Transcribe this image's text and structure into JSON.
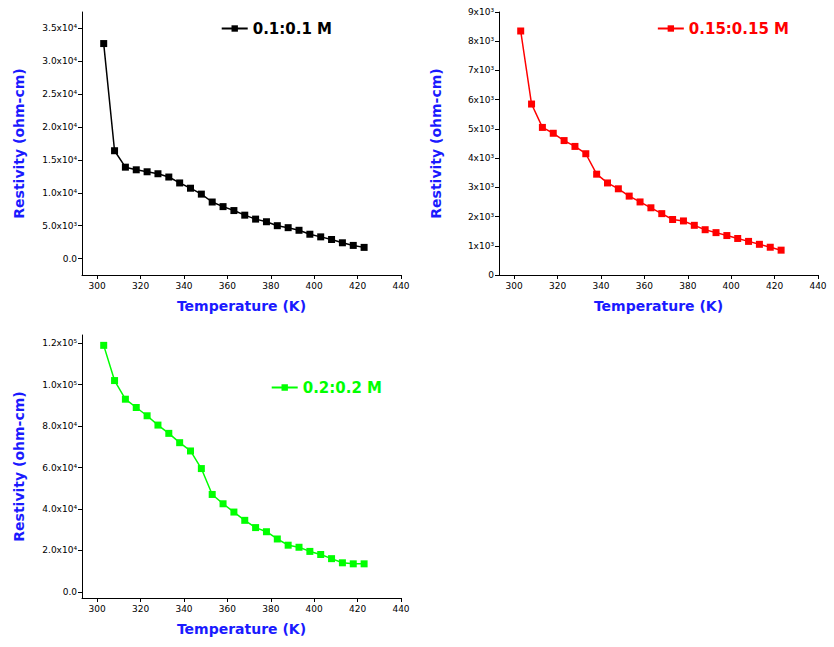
{
  "chart_data": [
    {
      "type": "line",
      "marker": "square",
      "grid": false,
      "legend": "top-right",
      "x_label": "Temperature (K)",
      "y_label": "Restivity (ohm-cm)",
      "x": [
        303,
        308,
        313,
        318,
        323,
        328,
        333,
        338,
        343,
        348,
        353,
        358,
        363,
        368,
        373,
        378,
        383,
        388,
        393,
        398,
        403,
        408,
        413,
        418,
        423
      ],
      "series": [
        {
          "name": "0.1:0.1 M",
          "color": "#000000",
          "values": [
            32700,
            16400,
            13900,
            13500,
            13200,
            12900,
            12400,
            11500,
            10700,
            9800,
            8600,
            7900,
            7300,
            6600,
            6000,
            5600,
            5000,
            4700,
            4300,
            3700,
            3300,
            2900,
            2400,
            2000,
            1700
          ]
        }
      ],
      "xlim": [
        293,
        440
      ],
      "xticks": [
        300,
        320,
        340,
        360,
        380,
        400,
        420,
        440
      ],
      "ylim": [
        -2500,
        37500
      ],
      "yticks": [
        {
          "value": 0,
          "label": "0.0"
        },
        {
          "value": 5000,
          "label": "5.0x10³"
        },
        {
          "value": 10000,
          "label": "1.0x10⁴"
        },
        {
          "value": 15000,
          "label": "1.5x10⁴"
        },
        {
          "value": 20000,
          "label": "2.0x10⁴"
        },
        {
          "value": 25000,
          "label": "2.5x10⁴"
        },
        {
          "value": 30000,
          "label": "3.0x10⁴"
        },
        {
          "value": 35000,
          "label": "3.5x10⁴"
        }
      ]
    },
    {
      "type": "line",
      "marker": "square",
      "grid": false,
      "legend": "top-right",
      "x_label": "Temperature (K)",
      "y_label": "Restivity (ohm-cm)",
      "x": [
        303,
        308,
        313,
        318,
        323,
        328,
        333,
        338,
        343,
        348,
        353,
        358,
        363,
        368,
        373,
        378,
        383,
        388,
        393,
        398,
        403,
        408,
        413,
        418,
        423
      ],
      "series": [
        {
          "name": "0.15:0.15 M",
          "color": "#ff0000",
          "values": [
            8350,
            5850,
            5050,
            4850,
            4600,
            4400,
            4150,
            3450,
            3150,
            2950,
            2700,
            2500,
            2300,
            2100,
            1900,
            1850,
            1700,
            1550,
            1450,
            1350,
            1250,
            1150,
            1050,
            950,
            850
          ]
        }
      ],
      "xlim": [
        293,
        440
      ],
      "xticks": [
        300,
        320,
        340,
        360,
        380,
        400,
        420,
        440
      ],
      "ylim": [
        0,
        9000
      ],
      "yticks": [
        0,
        {
          "value": 1000,
          "label": "1x10³"
        },
        {
          "value": 2000,
          "label": "2x10³"
        },
        {
          "value": 3000,
          "label": "3x10³"
        },
        {
          "value": 4000,
          "label": "4x10³"
        },
        {
          "value": 5000,
          "label": "5x10³"
        },
        {
          "value": 6000,
          "label": "6x10³"
        },
        {
          "value": 7000,
          "label": "7x10³"
        },
        {
          "value": 8000,
          "label": "8x10³"
        },
        {
          "value": 9000,
          "label": "9x10³"
        }
      ]
    },
    {
      "type": "line",
      "marker": "square",
      "grid": false,
      "legend": "top-right",
      "x_label": "Temperature (K)",
      "y_label": "Restivity (ohm-cm)",
      "x": [
        303,
        308,
        313,
        318,
        323,
        328,
        333,
        338,
        343,
        348,
        353,
        358,
        363,
        368,
        373,
        378,
        383,
        388,
        393,
        398,
        403,
        408,
        413,
        418,
        423
      ],
      "series": [
        {
          "name": "0.2:0.2 M",
          "color": "#00ff00",
          "values": [
            119000,
            102000,
            93000,
            89000,
            85000,
            80500,
            76500,
            72000,
            68000,
            59500,
            47000,
            42500,
            38500,
            34500,
            31000,
            29000,
            25500,
            22500,
            21500,
            19500,
            18000,
            16000,
            14000,
            13500,
            13500
          ]
        }
      ],
      "xlim": [
        293,
        440
      ],
      "xticks": [
        300,
        320,
        340,
        360,
        380,
        400,
        420,
        440
      ],
      "ylim": [
        -3000,
        124000
      ],
      "yticks": [
        {
          "value": 0,
          "label": "0.0"
        },
        {
          "value": 20000,
          "label": "2.0x10⁴"
        },
        {
          "value": 40000,
          "label": "4.0x10⁴"
        },
        {
          "value": 60000,
          "label": "6.0x10⁴"
        },
        {
          "value": 80000,
          "label": "8.0x10⁴"
        },
        {
          "value": 100000,
          "label": "1.0x10⁵"
        },
        {
          "value": 120000,
          "label": "1.2x10⁵"
        }
      ]
    }
  ]
}
